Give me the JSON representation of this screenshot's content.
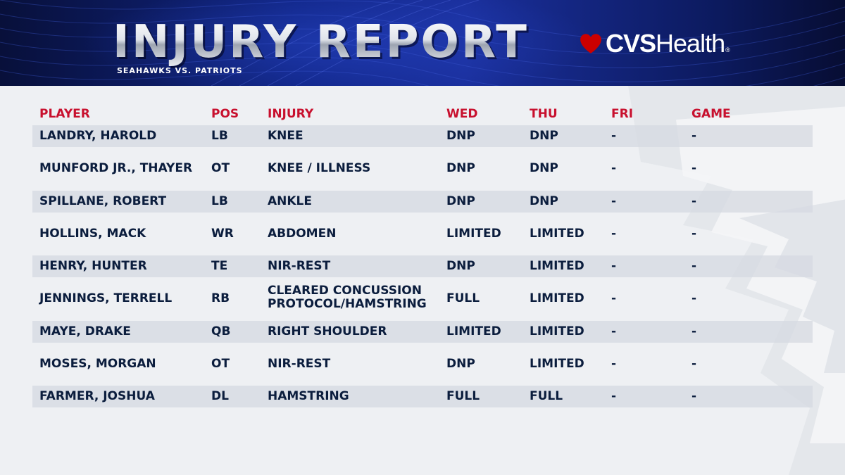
{
  "header": {
    "title": "INJURY REPORT",
    "subtitle": "SEAHAWKS VS. PATRIOTS",
    "sponsor_bold": "CVS",
    "sponsor_light": "Health",
    "sponsor_mark": "®"
  },
  "colors": {
    "header_text": "#c8102e",
    "body_text": "#0b1d3d",
    "banner_blue": "#1a2f9c",
    "sponsor_red": "#cc0000"
  },
  "table": {
    "columns": [
      "PLAYER",
      "POS",
      "INJURY",
      "WED",
      "THU",
      "FRI",
      "GAME"
    ],
    "rows": [
      {
        "player": "LANDRY, HAROLD",
        "pos": "LB",
        "injury": "KNEE",
        "injury2": "",
        "wed": "DNP",
        "thu": "DNP",
        "fri": "-",
        "game": "-"
      },
      {
        "player": "MUNFORD JR., THAYER",
        "pos": "OT",
        "injury": "KNEE / ILLNESS",
        "injury2": "",
        "wed": "DNP",
        "thu": "DNP",
        "fri": "-",
        "game": "-"
      },
      {
        "player": "SPILLANE, ROBERT",
        "pos": "LB",
        "injury": "ANKLE",
        "injury2": "",
        "wed": "DNP",
        "thu": "DNP",
        "fri": "-",
        "game": "-"
      },
      {
        "player": "HOLLINS, MACK",
        "pos": "WR",
        "injury": "ABDOMEN",
        "injury2": "",
        "wed": "LIMITED",
        "thu": "LIMITED",
        "fri": "-",
        "game": "-"
      },
      {
        "player": "HENRY, HUNTER",
        "pos": "TE",
        "injury": "NIR-REST",
        "injury2": "",
        "wed": "DNP",
        "thu": "LIMITED",
        "fri": "-",
        "game": "-"
      },
      {
        "player": "JENNINGS, TERRELL",
        "pos": "RB",
        "injury": "CLEARED CONCUSSION",
        "injury2": "PROTOCOL/HAMSTRING",
        "wed": "FULL",
        "thu": "LIMITED",
        "fri": "-",
        "game": "-"
      },
      {
        "player": "MAYE, DRAKE",
        "pos": "QB",
        "injury": "RIGHT SHOULDER",
        "injury2": "",
        "wed": "LIMITED",
        "thu": "LIMITED",
        "fri": "-",
        "game": "-"
      },
      {
        "player": "MOSES, MORGAN",
        "pos": "OT",
        "injury": "NIR-REST",
        "injury2": "",
        "wed": "DNP",
        "thu": "LIMITED",
        "fri": "-",
        "game": "-"
      },
      {
        "player": "FARMER, JOSHUA",
        "pos": "DL",
        "injury": "HAMSTRING",
        "injury2": "",
        "wed": "FULL",
        "thu": "FULL",
        "fri": "-",
        "game": "-"
      }
    ]
  }
}
